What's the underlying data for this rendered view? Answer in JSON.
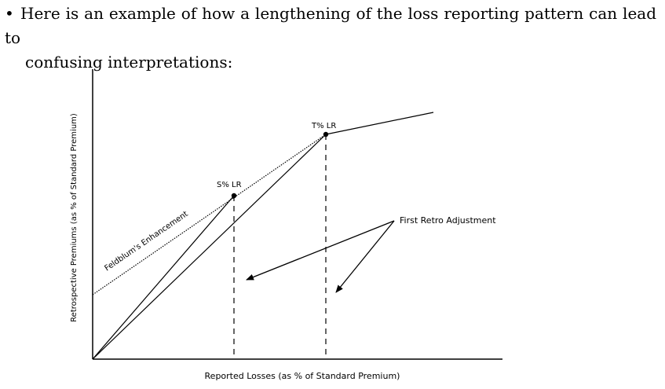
{
  "paragraph": {
    "bullet": "•",
    "line1": "Here is an example of how a lengthening of the loss reporting pattern can lead to",
    "line2": "confusing interpretations:"
  },
  "figure": {
    "xlabel": "Reported Losses (as % of Standard Premium)",
    "ylabel": "Retrospective Premiums (as % of Standard Premium)",
    "labels": {
      "s_point": "S% LR",
      "t_point": "T% LR",
      "feldblum": "Feldblum's Enhancement",
      "first_retro": "First Retro Adjustment"
    }
  }
}
